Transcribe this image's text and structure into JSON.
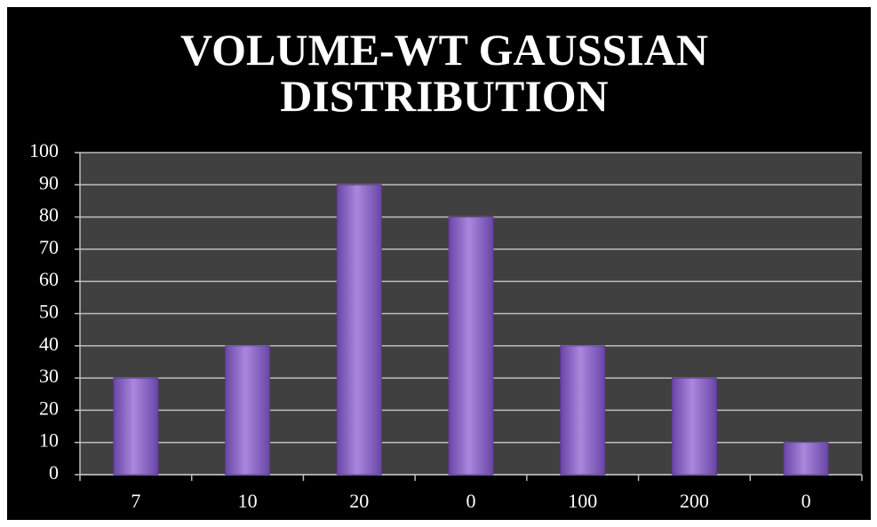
{
  "chart_data": {
    "type": "bar",
    "title": "VOLUME-WT GAUSSIAN DISTRIBUTION",
    "categories": [
      "7",
      "10",
      "20",
      "0",
      "100",
      "200",
      "0"
    ],
    "values": [
      30,
      40,
      90,
      80,
      40,
      30,
      10
    ],
    "color": "#8a62c4",
    "ylim": [
      0,
      100
    ],
    "yticks": [
      0,
      10,
      20,
      30,
      40,
      50,
      60,
      70,
      80,
      90,
      100
    ],
    "grid": true
  }
}
